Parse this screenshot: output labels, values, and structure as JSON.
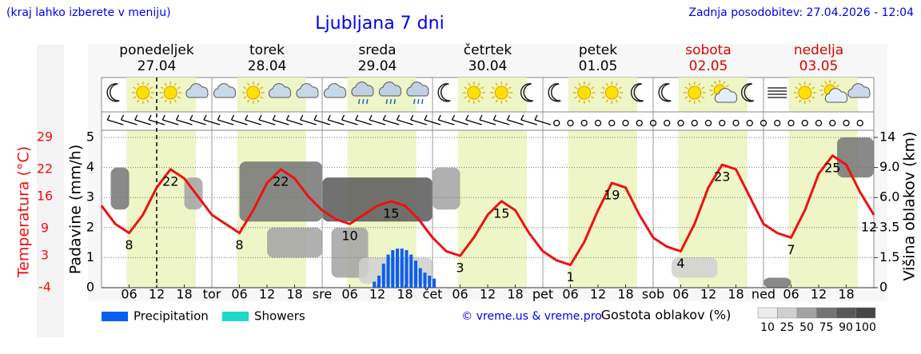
{
  "chart_data": {
    "type": "meteogram",
    "title": "Ljubljana 7 dni",
    "note": "(kraj lahko izberete v meniju)",
    "updated": "Zadnja posodobitev: 27.04.2026 - 12:04",
    "credit": "© vreme.us & vreme.pro",
    "days": [
      {
        "name": "ponedeljek",
        "date": "27.04",
        "color": "#000000"
      },
      {
        "name": "torek",
        "date": "28.04",
        "color": "#000000"
      },
      {
        "name": "sreda",
        "date": "29.04",
        "color": "#000000"
      },
      {
        "name": "četrtek",
        "date": "30.04",
        "color": "#000000"
      },
      {
        "name": "petek",
        "date": "01.05",
        "color": "#000000"
      },
      {
        "name": "sobota",
        "date": "02.05",
        "color": "#e00000"
      },
      {
        "name": "nedelja",
        "date": "03.05",
        "color": "#e00000"
      }
    ],
    "xlim": [
      0,
      168
    ],
    "xticks": [
      {
        "value": 6,
        "label": "06"
      },
      {
        "value": 12,
        "label": "12"
      },
      {
        "value": 18,
        "label": "18"
      },
      {
        "value": 24,
        "label": "tor"
      },
      {
        "value": 30,
        "label": "06"
      },
      {
        "value": 36,
        "label": "12"
      },
      {
        "value": 42,
        "label": "18"
      },
      {
        "value": 48,
        "label": "sre"
      },
      {
        "value": 54,
        "label": "06"
      },
      {
        "value": 60,
        "label": "12"
      },
      {
        "value": 66,
        "label": "18"
      },
      {
        "value": 72,
        "label": "čet"
      },
      {
        "value": 78,
        "label": "06"
      },
      {
        "value": 84,
        "label": "12"
      },
      {
        "value": 90,
        "label": "18"
      },
      {
        "value": 96,
        "label": "pet"
      },
      {
        "value": 102,
        "label": "06"
      },
      {
        "value": 108,
        "label": "12"
      },
      {
        "value": 114,
        "label": "18"
      },
      {
        "value": 120,
        "label": "sob"
      },
      {
        "value": 126,
        "label": "06"
      },
      {
        "value": 132,
        "label": "12"
      },
      {
        "value": 138,
        "label": "18"
      },
      {
        "value": 144,
        "label": "ned"
      },
      {
        "value": 150,
        "label": "06"
      },
      {
        "value": 156,
        "label": "12"
      },
      {
        "value": 162,
        "label": "18"
      }
    ],
    "now": 12,
    "ylabel": "Padavine (mm/h)",
    "ylim": [
      0,
      5
    ],
    "yticks": [
      0,
      1,
      2,
      3,
      4,
      5
    ],
    "grid": true,
    "series": [
      {
        "name": "Precipitation",
        "color": "#0a5ef0",
        "x": [
          59,
          60,
          61,
          62,
          63,
          64,
          65,
          66,
          67,
          68,
          69,
          70,
          71,
          72
        ],
        "values": [
          0.2,
          0.4,
          0.8,
          1.1,
          1.25,
          1.3,
          1.3,
          1.25,
          1.1,
          0.9,
          0.65,
          0.5,
          0.4,
          0.3
        ]
      },
      {
        "name": "Showers",
        "color": "#1ed8c8",
        "x": [],
        "values": []
      }
    ],
    "temperature": {
      "label": "Temperatura (°C)",
      "color": "#ee1111",
      "ylim": [
        -4,
        29
      ],
      "yticks": [
        -4,
        3,
        9,
        16,
        22,
        29
      ],
      "x": [
        0,
        3,
        6,
        9,
        12,
        15,
        18,
        21,
        24,
        27,
        30,
        33,
        36,
        39,
        42,
        45,
        48,
        51,
        54,
        57,
        60,
        63,
        66,
        69,
        72,
        75,
        78,
        81,
        84,
        87,
        90,
        93,
        96,
        99,
        102,
        105,
        108,
        111,
        114,
        117,
        120,
        123,
        126,
        129,
        132,
        135,
        138,
        141,
        144,
        147,
        150,
        153,
        156,
        159,
        162,
        165,
        168
      ],
      "values": [
        14,
        10,
        8,
        12,
        18,
        22,
        20,
        16,
        12,
        10,
        8,
        13,
        19,
        22,
        20,
        16,
        13,
        11,
        10,
        12,
        14,
        15,
        14,
        11,
        7,
        4,
        3,
        7,
        12,
        15,
        13,
        8,
        4,
        2,
        1,
        6,
        13,
        19,
        18,
        12,
        7,
        5,
        4,
        10,
        18,
        23,
        22,
        16,
        10,
        8,
        7,
        13,
        21,
        25,
        23,
        17,
        12
      ]
    },
    "clouds": {
      "label": "Višina oblakov (km)",
      "y2lim": [
        0,
        14
      ],
      "y2ticks": [
        0,
        1.5,
        3.5,
        {
          "value": 6,
          "label": "6.0"
        },
        {
          "value": 9,
          "label": "9.0"
        },
        14
      ],
      "blocks": [
        {
          "x": [
            2,
            6
          ],
          "km": [
            5,
            9
          ],
          "density": 75
        },
        {
          "x": [
            18,
            22
          ],
          "km": [
            5,
            8
          ],
          "density": 50
        },
        {
          "x": [
            30,
            48
          ],
          "km": [
            4,
            10
          ],
          "density": 75
        },
        {
          "x": [
            36,
            48
          ],
          "km": [
            1.5,
            3.5
          ],
          "density": 50
        },
        {
          "x": [
            48,
            72
          ],
          "km": [
            4,
            8
          ],
          "density": 90
        },
        {
          "x": [
            50,
            58
          ],
          "km": [
            0.5,
            3.5
          ],
          "density": 50
        },
        {
          "x": [
            56,
            72
          ],
          "km": [
            0.2,
            1.5
          ],
          "density": 25
        },
        {
          "x": [
            72,
            78
          ],
          "km": [
            5,
            9
          ],
          "density": 50
        },
        {
          "x": [
            124,
            134
          ],
          "km": [
            0.5,
            1.5
          ],
          "density": 25
        },
        {
          "x": [
            144,
            150
          ],
          "km": [
            0,
            0.5
          ],
          "density": 75
        },
        {
          "x": [
            160,
            168
          ],
          "km": [
            8,
            14
          ],
          "density": 75
        }
      ]
    },
    "density_scale": {
      "label": "Gostota oblakov (%)",
      "ticks": [
        10,
        25,
        50,
        75,
        90,
        100
      ]
    }
  }
}
